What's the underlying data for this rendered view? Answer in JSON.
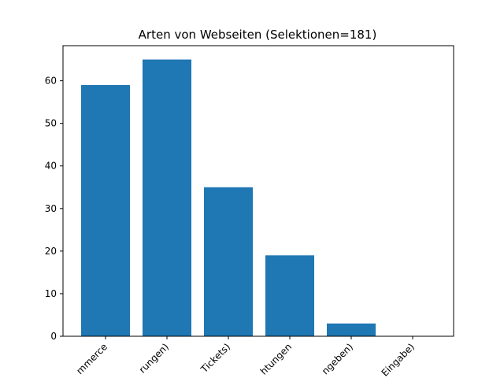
{
  "chart_data": {
    "type": "bar",
    "title": "Arten von Webseiten (Selektionen=181)",
    "xlabel": "",
    "ylabel": "",
    "categories": [
      "mmerce",
      "rungen)",
      "Tickets)",
      "htungen",
      "ngeben)",
      "Eingabe)"
    ],
    "values": [
      59,
      65,
      35,
      19,
      3,
      0
    ],
    "yticks": [
      0,
      10,
      20,
      30,
      40,
      50,
      60
    ],
    "ylim": [
      0,
      68.25
    ],
    "bar_color": "#1f77b4",
    "grid": false,
    "legend": "none"
  }
}
